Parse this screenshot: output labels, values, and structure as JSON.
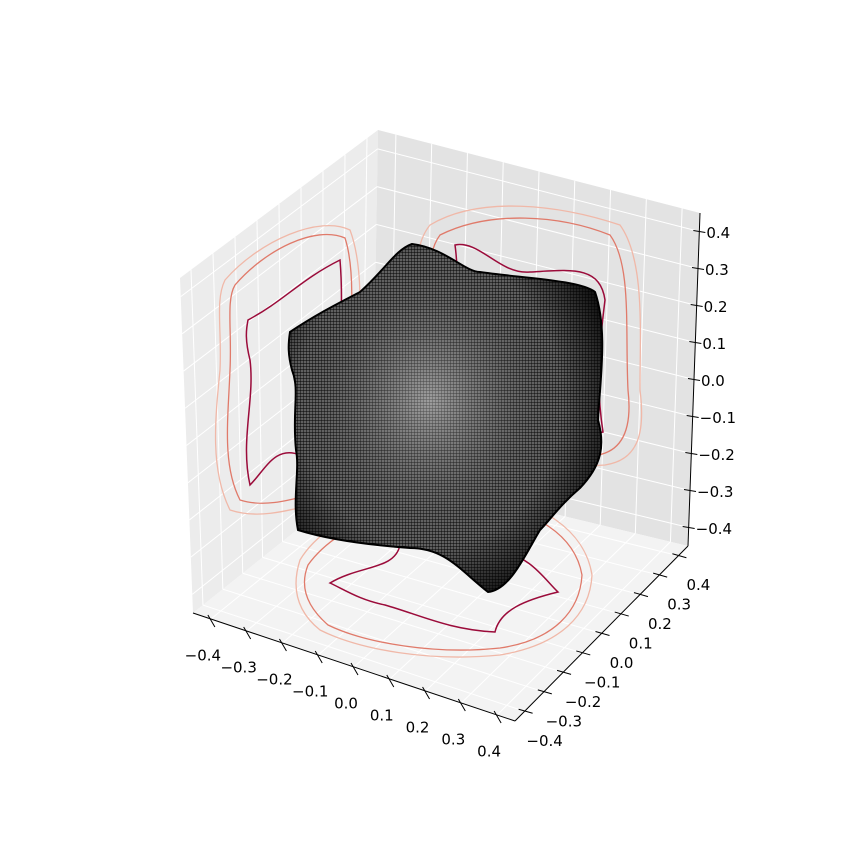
{
  "chart_data": {
    "type": "surface3d",
    "xlim": [
      -0.45,
      0.45
    ],
    "ylim": [
      -0.45,
      0.45
    ],
    "zlim": [
      -0.45,
      0.45
    ],
    "xticks": [
      {
        "value": -0.4,
        "label": "−0.4"
      },
      {
        "value": -0.3,
        "label": "−0.3"
      },
      {
        "value": -0.2,
        "label": "−0.2"
      },
      {
        "value": -0.1,
        "label": "−0.1"
      },
      {
        "value": 0,
        "label": "0.0"
      },
      0.1,
      0.2,
      0.3,
      0.4
    ],
    "yticks": [
      {
        "value": -0.4,
        "label": "−0.4"
      },
      {
        "value": -0.3,
        "label": "−0.3"
      },
      {
        "value": -0.2,
        "label": "−0.2"
      },
      {
        "value": -0.1,
        "label": "−0.1"
      },
      {
        "value": 0,
        "label": "0.0"
      },
      0.1,
      0.2,
      0.3,
      0.4
    ],
    "zticks": [
      {
        "value": -0.4,
        "label": "−0.4"
      },
      {
        "value": -0.3,
        "label": "−0.3"
      },
      {
        "value": -0.2,
        "label": "−0.2"
      },
      {
        "value": -0.1,
        "label": "−0.1"
      },
      {
        "value": 0,
        "label": "0.0"
      },
      0.1,
      0.2,
      0.3,
      0.4
    ],
    "grid": true
  }
}
